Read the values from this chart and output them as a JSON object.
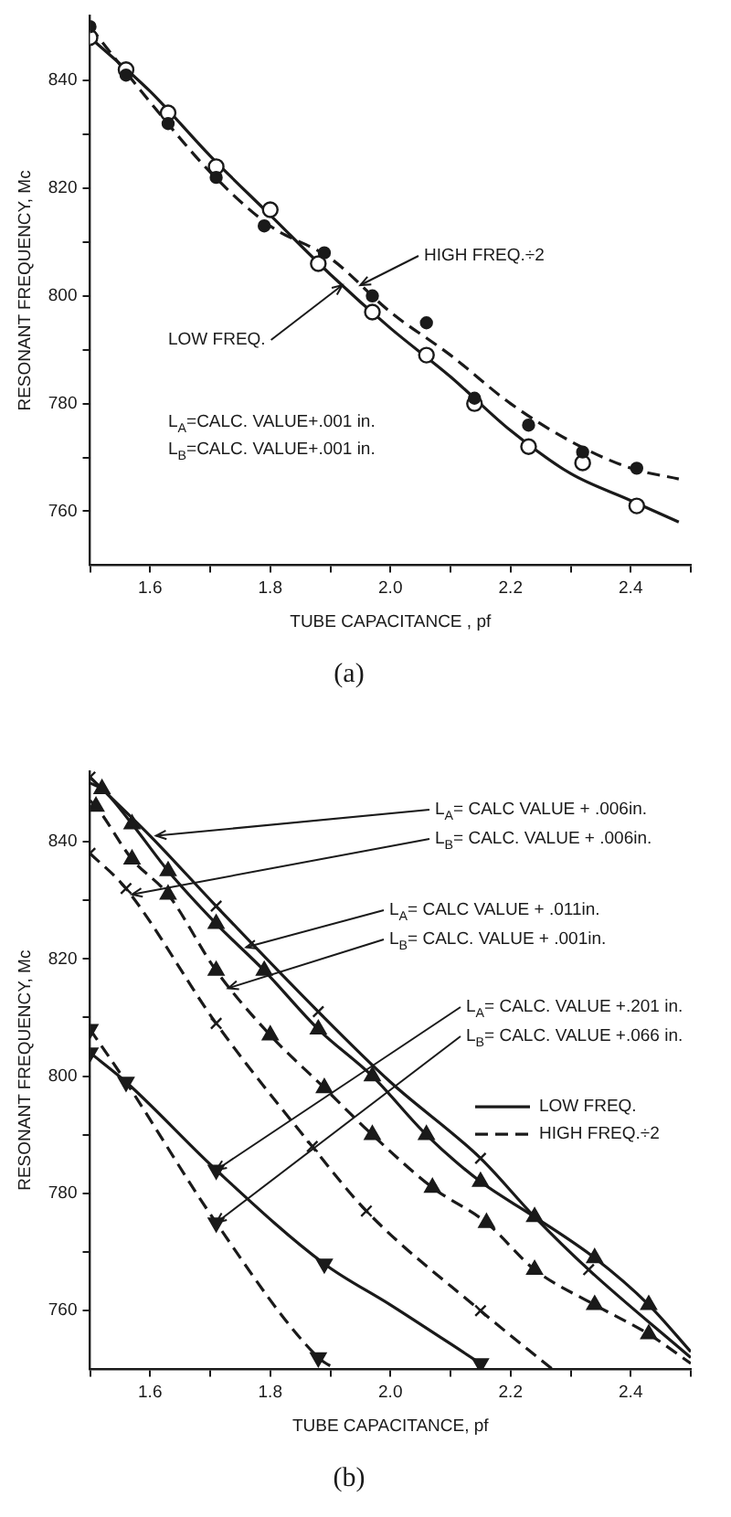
{
  "chart_data": [
    {
      "type": "scatter",
      "title": "(a)",
      "xlabel": "TUBE CAPACITANCE , pf",
      "ylabel": "RESONANT FREQUENCY, Mc",
      "xlim": [
        1.5,
        2.5
      ],
      "ylim": [
        750,
        852
      ],
      "xticks": [
        {
          "value": 1.5,
          "label": null
        },
        1.6,
        {
          "value": 1.7,
          "label": null
        },
        1.8,
        {
          "value": 1.9,
          "label": null
        },
        {
          "value": 2,
          "label": "2.0"
        },
        {
          "value": 2.1,
          "label": null
        },
        2.2,
        {
          "value": 2.3,
          "label": null
        },
        2.4,
        {
          "value": 2.5,
          "label": null
        }
      ],
      "yticks": [
        760,
        {
          "value": 770,
          "label": null
        },
        780,
        {
          "value": 790,
          "label": null
        },
        800,
        {
          "value": 810,
          "label": null
        },
        820,
        {
          "value": 830,
          "label": null
        },
        840
      ],
      "series": [
        {
          "marker": "circle",
          "color": "#1a1a1a",
          "x": [
            1.5,
            1.56,
            1.63,
            1.71,
            1.79,
            1.89,
            1.97,
            2.06,
            2.14,
            2.23,
            2.32,
            2.41
          ],
          "values": [
            850,
            841,
            832,
            822,
            813,
            808,
            800,
            795,
            781,
            776,
            771,
            768
          ]
        },
        {
          "marker": "circle-open",
          "color": "#1a1a1a",
          "x": [
            1.5,
            1.56,
            1.63,
            1.71,
            1.8,
            1.88,
            1.97,
            2.06,
            2.14,
            2.23,
            2.32,
            2.41
          ],
          "values": [
            848,
            842,
            834,
            824,
            816,
            806,
            797,
            789,
            780,
            772,
            769,
            761
          ]
        },
        {
          "type": "line",
          "line_style": "dashed",
          "color": "#1a1a1a",
          "x": [
            1.5,
            1.6,
            1.7,
            1.8,
            1.9,
            2.0,
            2.1,
            2.2,
            2.3,
            2.4,
            2.48
          ],
          "values": [
            850,
            836,
            823,
            813,
            807,
            797,
            789,
            780,
            773,
            768,
            766
          ]
        },
        {
          "type": "line",
          "line_style": "solid",
          "color": "#1a1a1a",
          "x": [
            1.5,
            1.6,
            1.7,
            1.8,
            1.9,
            2.0,
            2.1,
            2.2,
            2.3,
            2.4,
            2.48
          ],
          "values": [
            848,
            838,
            826,
            815,
            804,
            794,
            785,
            775,
            767,
            762,
            758
          ]
        }
      ],
      "annotations": [
        {
          "text": "HIGH FREQ.÷2",
          "x": 1.95,
          "y": 802
        },
        {
          "text": "LOW FREQ.",
          "x": 1.92,
          "y": 802
        },
        "L$_{A}$=CALC. VALUE+.001 in.",
        "L$_{B}$=CALC. VALUE+.001 in."
      ]
    },
    {
      "type": "line",
      "title": "(b)",
      "xlabel": "TUBE CAPACITANCE, pf",
      "ylabel": "RESONANT FREQUENCY, Mc",
      "legend": "right",
      "xlim": [
        1.5,
        2.5
      ],
      "ylim": [
        750,
        852
      ],
      "xticks": [
        {
          "value": 1.5,
          "label": null
        },
        1.6,
        {
          "value": 1.7,
          "label": null
        },
        1.8,
        {
          "value": 1.9,
          "label": null
        },
        {
          "value": 2,
          "label": "2.0"
        },
        {
          "value": 2.1,
          "label": null
        },
        2.2,
        {
          "value": 2.3,
          "label": null
        },
        2.4,
        {
          "value": 2.5,
          "label": null
        }
      ],
      "yticks": [
        760,
        {
          "value": 770,
          "label": null
        },
        780,
        {
          "value": 790,
          "label": null
        },
        800,
        {
          "value": 810,
          "label": null
        },
        820,
        {
          "value": 830,
          "label": null
        },
        840
      ],
      "series": [
        {
          "name": "LOW FREQ.",
          "line_style": "solid",
          "color": "#1a1a1a",
          "x": [
            1.5,
            1.6,
            1.71,
            1.88,
            2.0,
            2.15,
            2.24,
            2.33,
            2.5
          ],
          "values": [
            851,
            841,
            829,
            811,
            799,
            786,
            776,
            767,
            752
          ]
        },
        {
          "type": "scatter",
          "marker": "cross",
          "color": "#1a1a1a",
          "x": [
            1.5,
            1.71,
            1.88,
            2.15,
            2.33
          ],
          "values": [
            851,
            829,
            811,
            786,
            767
          ]
        },
        {
          "name": "HIGH FREQ.÷2",
          "line_style": "dashed",
          "color": "#1a1a1a",
          "x": [
            1.5,
            1.56,
            1.71,
            1.87,
            1.96,
            2.15,
            2.27
          ],
          "values": [
            838,
            832,
            809,
            788,
            777,
            760,
            750
          ]
        },
        {
          "type": "scatter",
          "marker": "cross",
          "color": "#1a1a1a",
          "x": [
            1.5,
            1.56,
            1.71,
            1.87,
            1.96,
            2.15
          ],
          "values": [
            838,
            832,
            809,
            788,
            777,
            760
          ]
        },
        {
          "line_style": "solid",
          "color": "#1a1a1a",
          "x": [
            1.5,
            1.52,
            1.57,
            1.63,
            1.71,
            1.79,
            1.88,
            1.97,
            2.06,
            2.15,
            2.24,
            2.34,
            2.43,
            2.5
          ],
          "values": [
            850,
            849,
            843,
            835,
            826,
            818,
            808,
            800,
            790,
            782,
            776,
            769,
            761,
            753
          ]
        },
        {
          "type": "scatter",
          "marker": "triangle",
          "color": "#1a1a1a",
          "x": [
            1.52,
            1.57,
            1.63,
            1.71,
            1.79,
            1.88,
            1.97,
            2.06,
            2.15,
            2.24,
            2.34,
            2.43
          ],
          "values": [
            849,
            843,
            835,
            826,
            818,
            808,
            800,
            790,
            782,
            776,
            769,
            761
          ]
        },
        {
          "line_style": "dashed",
          "color": "#1a1a1a",
          "x": [
            1.5,
            1.51,
            1.57,
            1.63,
            1.71,
            1.8,
            1.89,
            1.97,
            2.07,
            2.16,
            2.24,
            2.34,
            2.43,
            2.5
          ],
          "values": [
            847,
            846,
            837,
            831,
            818,
            807,
            798,
            790,
            781,
            775,
            767,
            761,
            756,
            751
          ]
        },
        {
          "type": "scatter",
          "marker": "triangle",
          "color": "#1a1a1a",
          "x": [
            1.51,
            1.57,
            1.63,
            1.71,
            1.8,
            1.89,
            1.97,
            2.07,
            2.16,
            2.24,
            2.34,
            2.43
          ],
          "values": [
            846,
            837,
            831,
            818,
            807,
            798,
            790,
            781,
            775,
            767,
            761,
            756
          ]
        },
        {
          "line_style": "solid",
          "color": "#1a1a1a",
          "x": [
            1.5,
            1.56,
            1.71,
            1.89,
            2.0,
            2.15
          ],
          "values": [
            804,
            799,
            784,
            768,
            761,
            751
          ]
        },
        {
          "type": "scatter",
          "marker": "triangle-down",
          "color": "#1a1a1a",
          "x": [
            1.5,
            1.56,
            1.71,
            1.89,
            2.15
          ],
          "values": [
            804,
            799,
            784,
            768,
            751
          ]
        },
        {
          "line_style": "dashed",
          "color": "#1a1a1a",
          "x": [
            1.5,
            1.56,
            1.71,
            1.88,
            1.91
          ],
          "values": [
            808,
            799,
            775,
            752,
            750
          ]
        },
        {
          "type": "scatter",
          "marker": "triangle-down",
          "color": "#1a1a1a",
          "x": [
            1.5,
            1.71,
            1.88
          ],
          "values": [
            808,
            775,
            752
          ]
        }
      ],
      "annotations": [
        {
          "text": "L$_{A}$= CALC VALUE + .006in.",
          "x": 1.61,
          "y": 841
        },
        {
          "text": "L$_{B}$= CALC. VALUE + .006in.",
          "x": 1.57,
          "y": 831
        },
        {
          "text": "L$_{A}$= CALC VALUE + .011in.",
          "x": 1.76,
          "y": 822
        },
        {
          "text": "L$_{B}$= CALC. VALUE + .001in.",
          "x": 1.73,
          "y": 815
        },
        {
          "text": "L$_{A}$= CALC. VALUE +.201 in.",
          "x": 1.71,
          "y": 784
        },
        {
          "text": "L$_{B}$= CALC. VALUE +.066 in.",
          "x": 1.71,
          "y": 775
        }
      ]
    }
  ]
}
